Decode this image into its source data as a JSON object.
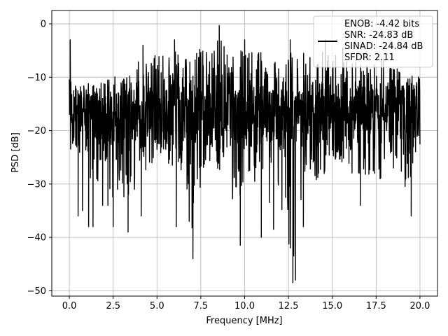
{
  "chart_data": {
    "type": "line",
    "xlabel": "Frequency [MHz]",
    "ylabel": "PSD [dB]",
    "xlim": [
      -1.0,
      21.0
    ],
    "ylim": [
      -51.0,
      2.5
    ],
    "xticks": [
      0.0,
      2.5,
      5.0,
      7.5,
      10.0,
      12.5,
      15.0,
      17.5,
      20.0
    ],
    "xtick_labels": [
      "0.0",
      "2.5",
      "5.0",
      "7.5",
      "10.0",
      "12.5",
      "15.0",
      "17.5",
      "20.0"
    ],
    "yticks": [
      0,
      -10,
      -20,
      -30,
      -40,
      -50
    ],
    "ytick_labels": [
      "0",
      "−10",
      "−20",
      "−30",
      "−40",
      "−50"
    ],
    "grid": true,
    "legend_position": "top-right",
    "legend_lines": [
      "ENOB: -4.42 bits",
      "SNR: -24.83 dB",
      "SINAD: -24.84 dB",
      "SFDR: 2.11"
    ],
    "series_color": "#000000",
    "envelope": {
      "x": [
        0.0,
        0.05,
        0.1,
        0.3,
        0.5,
        1.0,
        1.5,
        2.0,
        2.5,
        3.0,
        3.5,
        4.0,
        4.5,
        5.0,
        5.5,
        6.0,
        6.5,
        7.0,
        7.5,
        8.0,
        8.5,
        9.0,
        9.5,
        10.0,
        10.5,
        11.0,
        11.5,
        12.0,
        12.5,
        13.0,
        13.5,
        14.0,
        14.5,
        15.0,
        15.5,
        16.0,
        16.5,
        17.0,
        17.5,
        18.0,
        18.5,
        19.0,
        19.5,
        20.0
      ],
      "upper": [
        -6.0,
        -3.0,
        -9.0,
        -12.0,
        -9.0,
        -9.5,
        -11.0,
        -9.0,
        -8.0,
        -9.0,
        -8.0,
        -4.5,
        -6.0,
        -4.0,
        -4.5,
        -3.0,
        -4.0,
        -5.0,
        -3.0,
        -4.0,
        -0.5,
        -3.5,
        -4.0,
        -3.0,
        -4.0,
        -3.5,
        -6.0,
        -5.0,
        -3.0,
        -5.0,
        -3.5,
        -5.0,
        -3.0,
        -4.0,
        -5.0,
        -4.5,
        -6.0,
        -5.0,
        -6.0,
        -5.0,
        -7.0,
        -6.5,
        -8.0,
        -8.5
      ],
      "lower": [
        -24.0,
        -30.0,
        -28.0,
        -27.0,
        -36.0,
        -30.0,
        -38.0,
        -34.0,
        -38.0,
        -36.0,
        -39.0,
        -30.0,
        -32.0,
        -30.0,
        -30.0,
        -32.0,
        -38.0,
        -44.0,
        -34.0,
        -30.0,
        -32.0,
        -30.0,
        -41.0,
        -32.0,
        -34.0,
        -40.0,
        -38.0,
        -38.0,
        -48.5,
        -48.0,
        -32.0,
        -34.0,
        -32.0,
        -33.0,
        -30.0,
        -34.0,
        -33.0,
        -32.0,
        -34.0,
        -32.0,
        -32.0,
        -35.0,
        -36.0,
        -27.0
      ]
    },
    "deep_dips": [
      {
        "x": 0.5,
        "y": -36.0
      },
      {
        "x": 0.75,
        "y": -35.0
      },
      {
        "x": 1.1,
        "y": -38.0
      },
      {
        "x": 1.35,
        "y": -38.0
      },
      {
        "x": 1.9,
        "y": -34.0
      },
      {
        "x": 2.2,
        "y": -34.0
      },
      {
        "x": 2.5,
        "y": -38.0
      },
      {
        "x": 3.35,
        "y": -39.0
      },
      {
        "x": 4.1,
        "y": -36.0
      },
      {
        "x": 6.1,
        "y": -38.0
      },
      {
        "x": 7.05,
        "y": -44.0
      },
      {
        "x": 9.75,
        "y": -41.5
      },
      {
        "x": 10.95,
        "y": -40.0
      },
      {
        "x": 11.65,
        "y": -38.5
      },
      {
        "x": 12.75,
        "y": -48.5
      },
      {
        "x": 12.9,
        "y": -48.0
      },
      {
        "x": 13.35,
        "y": -38.0
      },
      {
        "x": 16.6,
        "y": -34.0
      },
      {
        "x": 19.5,
        "y": -36.0
      }
    ],
    "tall_peaks": [
      {
        "x": 0.05,
        "y": -3.0
      },
      {
        "x": 4.2,
        "y": -4.0
      },
      {
        "x": 6.0,
        "y": -3.0
      },
      {
        "x": 8.55,
        "y": -0.3
      },
      {
        "x": 10.0,
        "y": -3.0
      },
      {
        "x": 12.6,
        "y": -3.0
      },
      {
        "x": 14.6,
        "y": -3.0
      },
      {
        "x": 15.6,
        "y": -4.5
      }
    ],
    "mean_level": -17.0
  }
}
